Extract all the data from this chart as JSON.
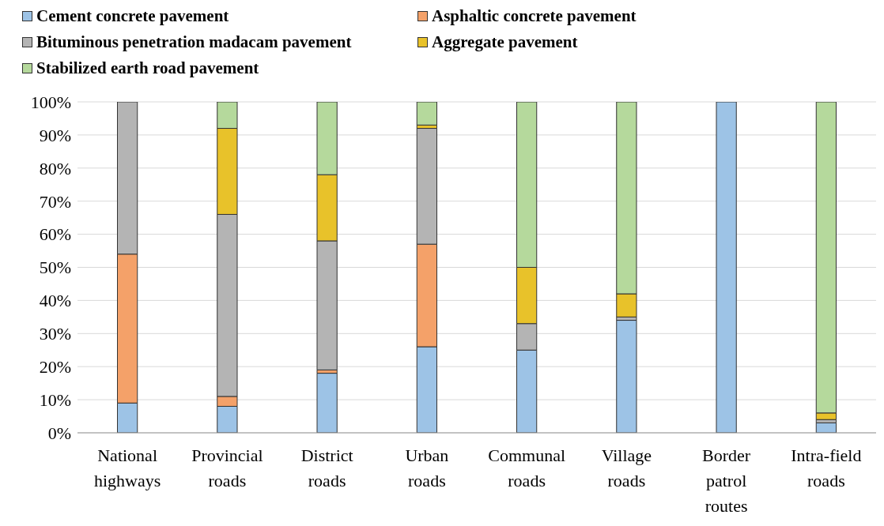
{
  "chart_data": {
    "type": "bar",
    "stacked": true,
    "categories": [
      "National highways",
      "Provincial roads",
      "District roads",
      "Urban roads",
      "Communal roads",
      "Village roads",
      "Border patrol routes",
      "Intra-field roads"
    ],
    "series": [
      {
        "name": "Cement concrete pavement",
        "color": "#9dc3e6",
        "values": [
          9,
          8,
          18,
          26,
          25,
          34,
          100,
          3
        ]
      },
      {
        "name": "Asphaltic concrete pavement",
        "color": "#f4a169",
        "values": [
          45,
          3,
          1,
          31,
          0,
          0,
          0,
          0
        ]
      },
      {
        "name": "Bituminous penetration madacam pavement",
        "color": "#b4b4b4",
        "values": [
          46,
          55,
          39,
          35,
          8,
          1,
          0,
          1
        ]
      },
      {
        "name": "Aggregate pavement",
        "color": "#e8c22a",
        "values": [
          0,
          26,
          20,
          1,
          17,
          7,
          0,
          2
        ]
      },
      {
        "name": "Stabilized earth road pavement",
        "color": "#b5d99c",
        "values": [
          0,
          8,
          22,
          7,
          50,
          58,
          0,
          94
        ]
      }
    ],
    "ylim": [
      0,
      100
    ],
    "yticks": [
      {
        "value": 0,
        "label": "0%"
      },
      {
        "value": 10,
        "label": "10%"
      },
      {
        "value": 20,
        "label": "20%"
      },
      {
        "value": 30,
        "label": "30%"
      },
      {
        "value": 40,
        "label": "40%"
      },
      {
        "value": 50,
        "label": "50%"
      },
      {
        "value": 60,
        "label": "60%"
      },
      {
        "value": 70,
        "label": "70%"
      },
      {
        "value": 80,
        "label": "80%"
      },
      {
        "value": 90,
        "label": "90%"
      },
      {
        "value": 100,
        "label": "100%"
      }
    ],
    "grid": "y",
    "legend": "top left"
  }
}
